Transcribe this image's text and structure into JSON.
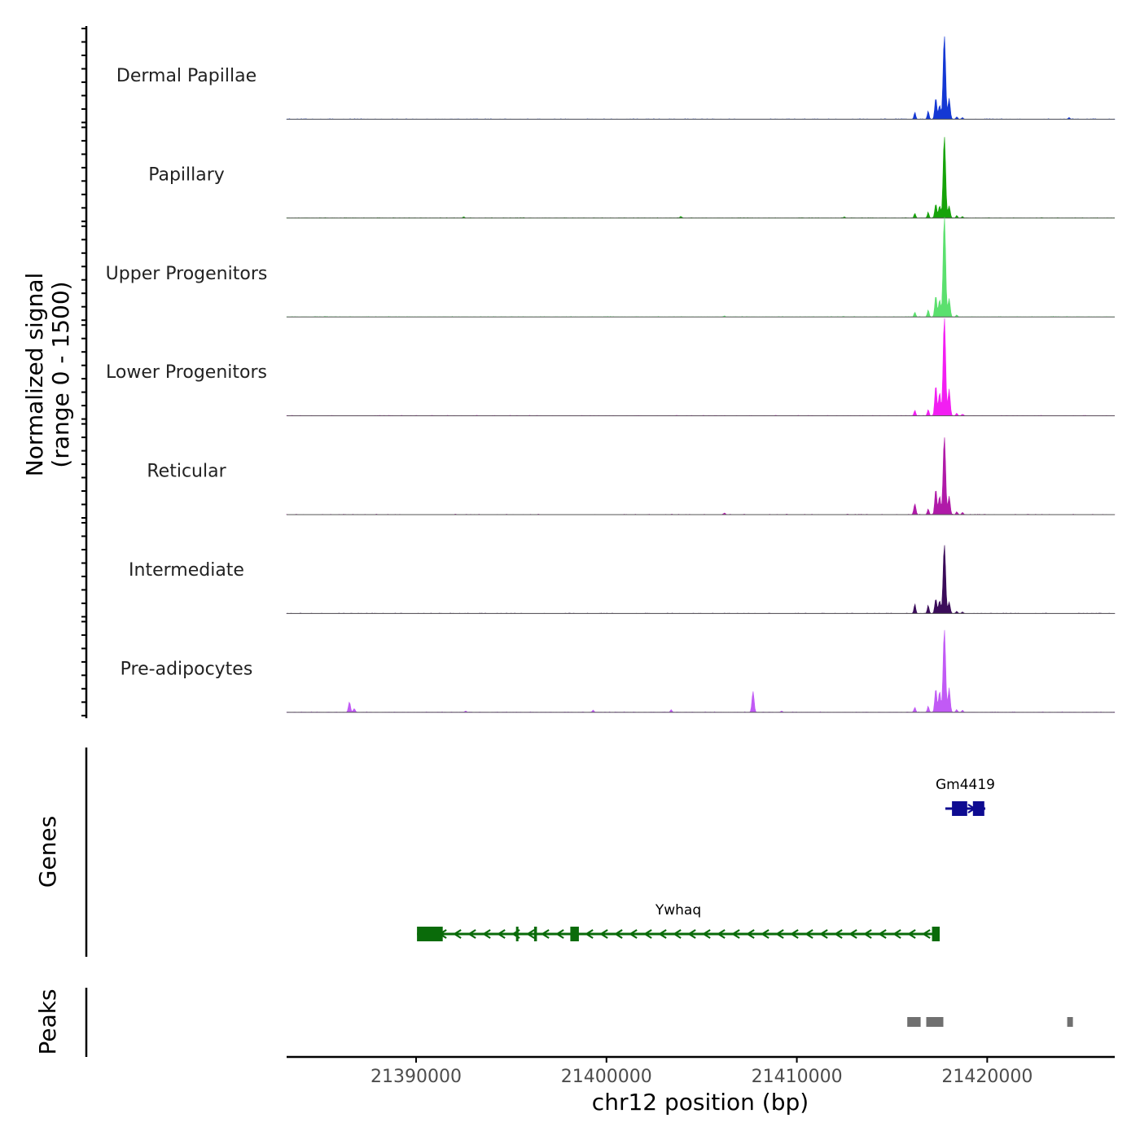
{
  "chart_data": {
    "type": "area",
    "title": "",
    "chromosome": "chr12",
    "xlabel": "chr12 position (bp)",
    "ylabel": "Normalized signal",
    "ylabel_sub": "(range 0 - 1500)",
    "y_range": [
      0,
      1500
    ],
    "xlim": [
      21383200,
      21426700
    ],
    "x_ticks": [
      21390000,
      21400000,
      21410000,
      21420000
    ],
    "x_tick_labels": [
      "21390000",
      "21400000",
      "21410000",
      "21420000"
    ],
    "series": [
      {
        "name": "Dermal Papillae",
        "color": "#1438d4",
        "points": [
          [
            21416200,
            110
          ],
          [
            21416900,
            130
          ],
          [
            21417300,
            330
          ],
          [
            21417500,
            220
          ],
          [
            21417750,
            1310
          ],
          [
            21418000,
            330
          ],
          [
            21418400,
            35
          ],
          [
            21418700,
            25
          ],
          [
            21424300,
            25
          ]
        ],
        "noise": 8
      },
      {
        "name": "Papillary",
        "color": "#16a30a",
        "points": [
          [
            21416200,
            75
          ],
          [
            21416900,
            90
          ],
          [
            21417300,
            220
          ],
          [
            21417500,
            190
          ],
          [
            21417750,
            1280
          ],
          [
            21418000,
            190
          ],
          [
            21418400,
            40
          ],
          [
            21418700,
            25
          ],
          [
            21403900,
            25
          ],
          [
            21392500,
            20
          ],
          [
            21412500,
            20
          ]
        ],
        "noise": 8
      },
      {
        "name": "Upper Progenitors",
        "color": "#5be06e",
        "points": [
          [
            21416200,
            75
          ],
          [
            21416900,
            110
          ],
          [
            21417300,
            330
          ],
          [
            21417500,
            270
          ],
          [
            21417750,
            1580
          ],
          [
            21418000,
            290
          ],
          [
            21418400,
            30
          ],
          [
            21406200,
            15
          ]
        ],
        "noise": 8
      },
      {
        "name": "Lower Progenitors",
        "color": "#f21ef2",
        "points": [
          [
            21416200,
            85
          ],
          [
            21416900,
            95
          ],
          [
            21417300,
            480
          ],
          [
            21417500,
            360
          ],
          [
            21417750,
            1540
          ],
          [
            21418000,
            420
          ],
          [
            21418400,
            40
          ],
          [
            21418700,
            25
          ]
        ],
        "noise": 8
      },
      {
        "name": "Reticular",
        "color": "#b01aa8",
        "points": [
          [
            21416200,
            170
          ],
          [
            21416900,
            90
          ],
          [
            21417300,
            400
          ],
          [
            21417500,
            290
          ],
          [
            21417750,
            1220
          ],
          [
            21418000,
            290
          ],
          [
            21418400,
            45
          ],
          [
            21418700,
            35
          ],
          [
            21406200,
            25
          ]
        ],
        "noise": 8
      },
      {
        "name": "Intermediate",
        "color": "#3b0c5a",
        "points": [
          [
            21416200,
            150
          ],
          [
            21416900,
            130
          ],
          [
            21417300,
            230
          ],
          [
            21417500,
            200
          ],
          [
            21417750,
            1080
          ],
          [
            21418000,
            180
          ],
          [
            21418400,
            35
          ],
          [
            21418700,
            25
          ]
        ],
        "noise": 7
      },
      {
        "name": "Pre-adipocytes",
        "color": "#c15af5",
        "points": [
          [
            21386500,
            160
          ],
          [
            21386750,
            60
          ],
          [
            21407700,
            330
          ],
          [
            21416200,
            80
          ],
          [
            21416900,
            95
          ],
          [
            21417300,
            370
          ],
          [
            21417500,
            330
          ],
          [
            21417750,
            1300
          ],
          [
            21418000,
            380
          ],
          [
            21418400,
            40
          ],
          [
            21418700,
            30
          ],
          [
            21399300,
            35
          ],
          [
            21403400,
            40
          ],
          [
            21409200,
            20
          ],
          [
            21392600,
            20
          ]
        ],
        "noise": 10
      }
    ],
    "genes": [
      {
        "name": "Gm4419",
        "strand": "+",
        "start": 21417800,
        "end": 21419900,
        "color": "#0e0b91",
        "exons": [
          [
            21418150,
            21418950
          ],
          [
            21419250,
            21419850
          ]
        ]
      },
      {
        "name": "Ywhaq",
        "strand": "-",
        "start": 21390050,
        "end": 21417500,
        "color": "#0a6b0a",
        "exons": [
          [
            21390050,
            21391400
          ],
          [
            21395250,
            21395300
          ],
          [
            21396200,
            21396350
          ],
          [
            21398100,
            21398550
          ],
          [
            21417100,
            21417500
          ]
        ]
      }
    ],
    "peaks": [
      [
        21415800,
        21416500
      ],
      [
        21416800,
        21417700
      ],
      [
        21424200,
        21424500
      ]
    ],
    "panels": {
      "genes_label": "Genes",
      "peaks_label": "Peaks"
    }
  }
}
